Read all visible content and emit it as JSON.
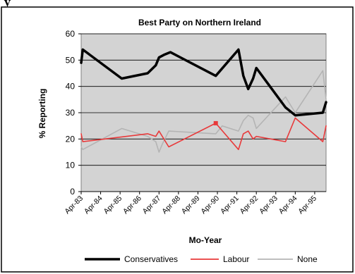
{
  "page": {
    "caption_fragment": "y"
  },
  "chart_data": {
    "type": "line",
    "title": "Best Party on Northern Ireland",
    "xlabel": "Mo-Year",
    "ylabel": "% Reporting",
    "ylim": [
      0,
      60
    ],
    "yticks": [
      0,
      10,
      20,
      30,
      40,
      50,
      60
    ],
    "x_tick_labels": [
      "Apr-83",
      "Apr-84",
      "Apr-85",
      "Apr-86",
      "Apr-87",
      "Apr-88",
      "Apr-89",
      "Apr-90",
      "Apr-91",
      "Apr-92",
      "Apr-93",
      "Apr-94",
      "Apr-95"
    ],
    "grid": "horizontal",
    "legend_position": "bottom",
    "background_color": "#d3d3d3",
    "series": [
      {
        "name": "Conservatives",
        "color": "#000000",
        "points": [
          [
            "1983-04",
            49
          ],
          [
            "1983-05",
            54
          ],
          [
            "1985-05",
            43
          ],
          [
            "1986-09",
            45
          ],
          [
            "1987-02",
            48
          ],
          [
            "1987-04",
            51
          ],
          [
            "1987-07",
            52
          ],
          [
            "1987-11",
            53
          ],
          [
            "1990-03",
            44
          ],
          [
            "1991-05",
            54
          ],
          [
            "1991-08",
            44
          ],
          [
            "1991-11",
            39
          ],
          [
            "1992-02",
            43
          ],
          [
            "1992-04",
            47
          ],
          [
            "1993-10",
            32
          ],
          [
            "1994-04",
            29
          ],
          [
            "1995-09",
            30
          ],
          [
            "1995-11",
            34
          ]
        ]
      },
      {
        "name": "Labour",
        "color": "#e8393a",
        "points": [
          [
            "1983-04",
            22
          ],
          [
            "1983-05",
            19
          ],
          [
            "1986-09",
            22
          ],
          [
            "1987-02",
            21
          ],
          [
            "1987-04",
            23
          ],
          [
            "1987-10",
            17
          ],
          [
            "1990-03",
            26
          ],
          [
            "1991-05",
            16
          ],
          [
            "1991-08",
            22
          ],
          [
            "1991-11",
            23
          ],
          [
            "1992-02",
            20
          ],
          [
            "1992-04",
            21
          ],
          [
            "1993-10",
            19
          ],
          [
            "1994-04",
            28
          ],
          [
            "1995-09",
            19
          ],
          [
            "1995-11",
            25
          ]
        ]
      },
      {
        "name": "None",
        "color": "#b4b4b4",
        "points": [
          [
            "1983-04",
            17
          ],
          [
            "1983-05",
            16
          ],
          [
            "1985-05",
            24
          ],
          [
            "1986-09",
            21
          ],
          [
            "1987-02",
            19
          ],
          [
            "1987-04",
            15
          ],
          [
            "1987-06",
            18
          ],
          [
            "1987-10",
            23
          ],
          [
            "1990-03",
            22
          ],
          [
            "1990-07",
            25
          ],
          [
            "1991-05",
            23
          ],
          [
            "1991-08",
            27
          ],
          [
            "1991-11",
            29
          ],
          [
            "1992-02",
            28
          ],
          [
            "1992-04",
            24
          ],
          [
            "1993-10",
            36
          ],
          [
            "1994-04",
            30
          ],
          [
            "1995-09",
            46
          ],
          [
            "1995-11",
            35
          ]
        ]
      }
    ],
    "highlighted_point": {
      "series": "Labour",
      "x": "1990-03",
      "y": 26
    }
  }
}
